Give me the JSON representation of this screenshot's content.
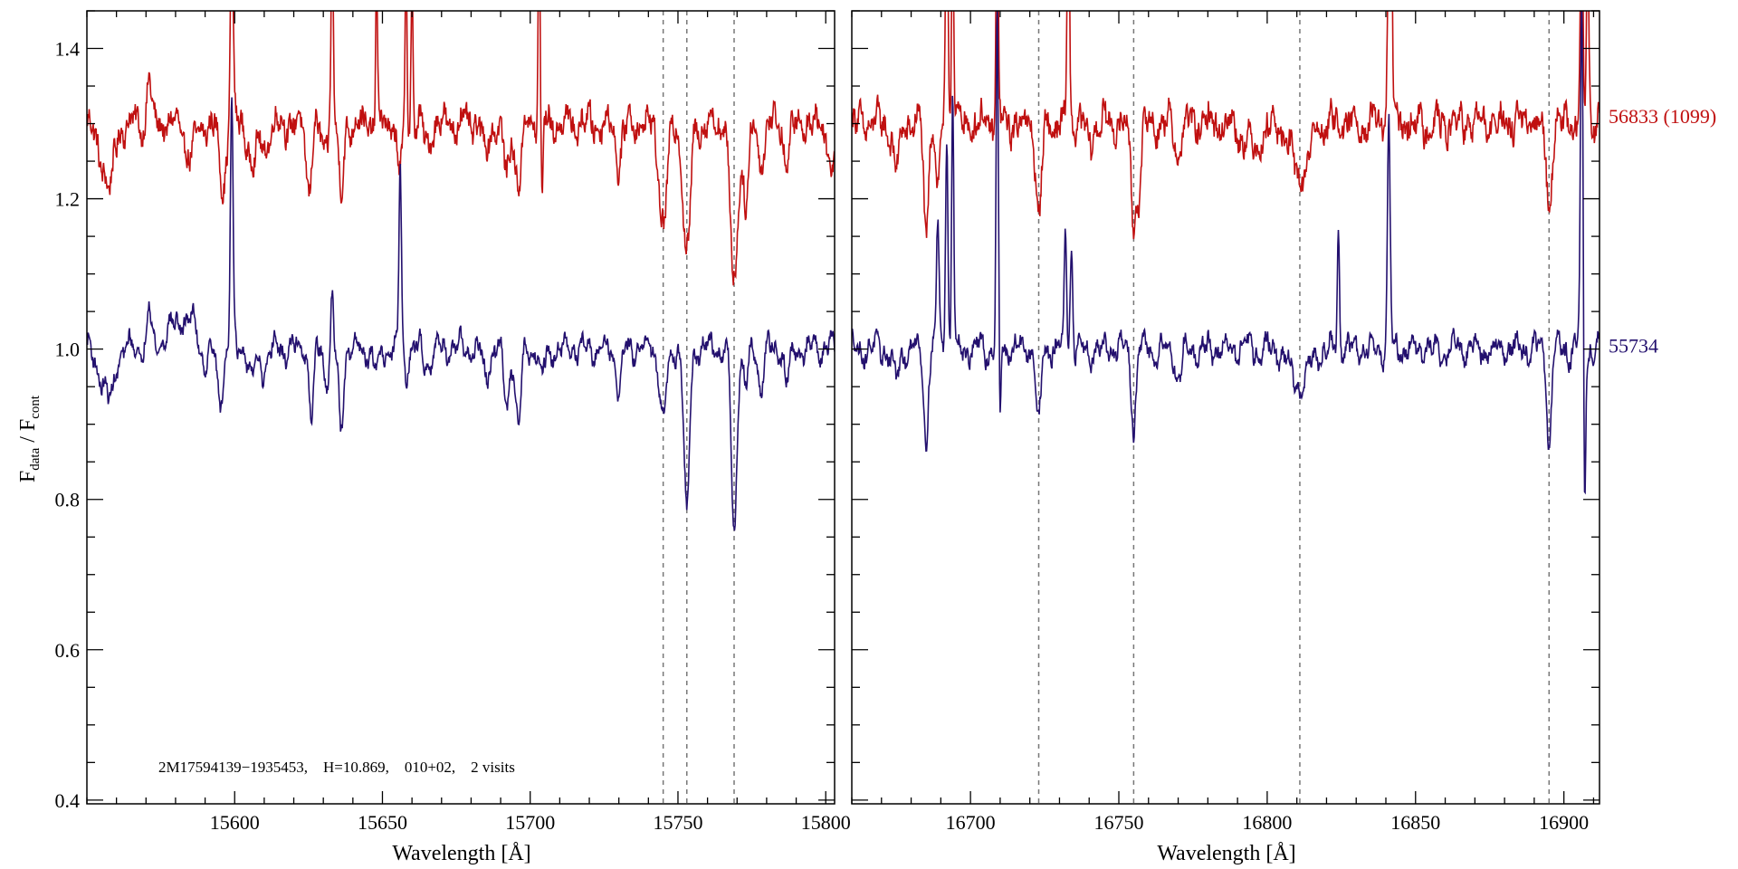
{
  "chart_data": [
    {
      "type": "line",
      "panel": "left",
      "xlabel": "Wavelength [Å]",
      "ylabel": "F_data / F_cont",
      "ylabel_main": "F",
      "ylabel_sub1": "data",
      "ylabel_sep": " / F",
      "ylabel_sub2": "cont",
      "xlim": [
        15550,
        15803
      ],
      "ylim": [
        0.395,
        1.45
      ],
      "xticks": [
        15600,
        15650,
        15700,
        15750,
        15800
      ],
      "xtick_labels": [
        "15600",
        "15650",
        "15700",
        "15750",
        "15800"
      ],
      "yticks": [
        0.4,
        0.6,
        0.8,
        1.0,
        1.2,
        1.4
      ],
      "ytick_labels": [
        "0.4",
        "0.6",
        "0.8",
        "1.0",
        "1.2",
        "1.4"
      ],
      "reference_lines_x": [
        15745,
        15753,
        15769
      ],
      "annotation": "2M17594139−1935453,    H=10.869,    010+02,    2 visits",
      "series": [
        {
          "name": "56833 (1099)",
          "color": "#c01010",
          "baseline": 1.3,
          "noise": 0.015,
          "features": [
            {
              "x": 15555,
              "d": 0.04,
              "w": 2
            },
            {
              "x": 15558,
              "d": 0.07,
              "w": 1.5
            },
            {
              "x": 15571,
              "d": -0.07,
              "w": 0.6
            },
            {
              "x": 15585,
              "d": 0.04,
              "w": 2
            },
            {
              "x": 15596,
              "d": 0.08,
              "w": 1.2
            },
            {
              "x": 15599,
              "d": -0.25,
              "w": 0.5
            },
            {
              "x": 15606,
              "d": 0.05,
              "w": 1.5
            },
            {
              "x": 15610,
              "d": 0.03,
              "w": 1.5
            },
            {
              "x": 15625,
              "d": 0.08,
              "w": 1.0
            },
            {
              "x": 15630,
              "d": 0.04,
              "w": 1.0
            },
            {
              "x": 15633,
              "d": -0.25,
              "w": 0.4
            },
            {
              "x": 15636,
              "d": 0.1,
              "w": 0.8
            },
            {
              "x": 15648,
              "d": -0.2,
              "w": 0.3
            },
            {
              "x": 15656,
              "d": 0.06,
              "w": 1.0
            },
            {
              "x": 15658,
              "d": -0.25,
              "w": 0.3
            },
            {
              "x": 15660,
              "d": -0.2,
              "w": 0.3
            },
            {
              "x": 15665,
              "d": 0.03,
              "w": 1.0
            },
            {
              "x": 15685,
              "d": 0.04,
              "w": 1.0
            },
            {
              "x": 15692,
              "d": 0.07,
              "w": 1.0
            },
            {
              "x": 15696,
              "d": 0.08,
              "w": 1.0
            },
            {
              "x": 15703,
              "d": -0.3,
              "w": 0.3
            },
            {
              "x": 15704,
              "d": 0.1,
              "w": 0.3
            },
            {
              "x": 15730,
              "d": 0.05,
              "w": 1.0
            },
            {
              "x": 15745,
              "d": 0.13,
              "w": 1.4
            },
            {
              "x": 15753,
              "d": 0.18,
              "w": 1.2
            },
            {
              "x": 15769,
              "d": 0.22,
              "w": 1.2
            },
            {
              "x": 15773,
              "d": 0.1,
              "w": 1.0
            },
            {
              "x": 15778,
              "d": 0.05,
              "w": 1.0
            },
            {
              "x": 15787,
              "d": 0.05,
              "w": 1.0
            },
            {
              "x": 15802,
              "d": 0.07,
              "w": 1.0
            }
          ]
        },
        {
          "name": "55734",
          "color": "#23106e",
          "baseline": 1.0,
          "noise": 0.009,
          "features": [
            {
              "x": 15555,
              "d": 0.03,
              "w": 2
            },
            {
              "x": 15558,
              "d": 0.06,
              "w": 1.5
            },
            {
              "x": 15571,
              "d": -0.06,
              "w": 0.6
            },
            {
              "x": 15583,
              "d": -0.04,
              "w": 5
            },
            {
              "x": 15590,
              "d": 0.03,
              "w": 1.5
            },
            {
              "x": 15595,
              "d": 0.07,
              "w": 1.0
            },
            {
              "x": 15599,
              "d": -0.33,
              "w": 0.45
            },
            {
              "x": 15606,
              "d": 0.04,
              "w": 1.2
            },
            {
              "x": 15610,
              "d": 0.03,
              "w": 1.2
            },
            {
              "x": 15626,
              "d": 0.09,
              "w": 0.8
            },
            {
              "x": 15631,
              "d": 0.04,
              "w": 0.8
            },
            {
              "x": 15633,
              "d": -0.07,
              "w": 0.4
            },
            {
              "x": 15636,
              "d": 0.11,
              "w": 0.8
            },
            {
              "x": 15648,
              "d": 0.03,
              "w": 1.0
            },
            {
              "x": 15656,
              "d": -0.24,
              "w": 0.4
            },
            {
              "x": 15658,
              "d": 0.03,
              "w": 0.5
            },
            {
              "x": 15665,
              "d": 0.02,
              "w": 1.0
            },
            {
              "x": 15685,
              "d": 0.04,
              "w": 1.0
            },
            {
              "x": 15692,
              "d": 0.08,
              "w": 0.9
            },
            {
              "x": 15696,
              "d": 0.1,
              "w": 0.9
            },
            {
              "x": 15704,
              "d": 0.04,
              "w": 0.8
            },
            {
              "x": 15730,
              "d": 0.05,
              "w": 1.0
            },
            {
              "x": 15745,
              "d": 0.1,
              "w": 1.1
            },
            {
              "x": 15753,
              "d": 0.23,
              "w": 0.9
            },
            {
              "x": 15769,
              "d": 0.25,
              "w": 0.9
            },
            {
              "x": 15773,
              "d": 0.05,
              "w": 0.8
            },
            {
              "x": 15778,
              "d": 0.05,
              "w": 0.8
            },
            {
              "x": 15787,
              "d": 0.04,
              "w": 1.0
            }
          ]
        }
      ]
    },
    {
      "type": "line",
      "panel": "right",
      "xlabel": "Wavelength [Å]",
      "xlim": [
        16660,
        16912
      ],
      "ylim": [
        0.395,
        1.45
      ],
      "xticks": [
        16700,
        16750,
        16800,
        16850,
        16900
      ],
      "xtick_labels": [
        "16700",
        "16750",
        "16800",
        "16850",
        "16900"
      ],
      "yticks": [
        0.4,
        0.6,
        0.8,
        1.0,
        1.2,
        1.4
      ],
      "reference_lines_x": [
        16723,
        16755,
        16811,
        16895
      ],
      "series": [
        {
          "name": "56833 (1099)",
          "label": "56833 (1099)",
          "label_y": 1.31,
          "color": "#c01010",
          "baseline": 1.3,
          "noise": 0.016,
          "features": [
            {
              "x": 16675,
              "d": 0.06,
              "w": 1.2
            },
            {
              "x": 16685,
              "d": 0.16,
              "w": 0.7
            },
            {
              "x": 16689,
              "d": 0.08,
              "w": 0.8
            },
            {
              "x": 16692,
              "d": -0.35,
              "w": 0.4
            },
            {
              "x": 16694,
              "d": -0.3,
              "w": 0.35
            },
            {
              "x": 16709,
              "d": -0.35,
              "w": 0.35
            },
            {
              "x": 16723,
              "d": 0.13,
              "w": 0.9
            },
            {
              "x": 16733,
              "d": -0.3,
              "w": 0.4
            },
            {
              "x": 16740,
              "d": 0.03,
              "w": 1.0
            },
            {
              "x": 16755,
              "d": 0.13,
              "w": 0.9
            },
            {
              "x": 16757,
              "d": 0.08,
              "w": 0.7
            },
            {
              "x": 16770,
              "d": 0.04,
              "w": 1.0
            },
            {
              "x": 16795,
              "d": 0.03,
              "w": 3.0
            },
            {
              "x": 16811,
              "d": 0.07,
              "w": 3.0
            },
            {
              "x": 16841,
              "d": -0.25,
              "w": 0.45
            },
            {
              "x": 16842,
              "d": -0.2,
              "w": 0.3
            },
            {
              "x": 16895,
              "d": 0.1,
              "w": 0.9
            },
            {
              "x": 16906,
              "d": -0.3,
              "w": 0.4
            },
            {
              "x": 16908,
              "d": -0.25,
              "w": 0.4
            }
          ]
        },
        {
          "name": "55734",
          "label": "55734",
          "label_y": 1.005,
          "color": "#23106e",
          "baseline": 1.0,
          "noise": 0.01,
          "features": [
            {
              "x": 16675,
              "d": 0.04,
              "w": 1.2
            },
            {
              "x": 16685,
              "d": 0.12,
              "w": 0.7
            },
            {
              "x": 16689,
              "d": -0.17,
              "w": 0.45
            },
            {
              "x": 16692,
              "d": -0.3,
              "w": 0.4
            },
            {
              "x": 16694,
              "d": -0.35,
              "w": 0.35
            },
            {
              "x": 16709,
              "d": -0.45,
              "w": 0.35
            },
            {
              "x": 16710,
              "d": 0.11,
              "w": 0.25
            },
            {
              "x": 16723,
              "d": 0.1,
              "w": 0.8
            },
            {
              "x": 16732,
              "d": -0.15,
              "w": 0.4
            },
            {
              "x": 16734,
              "d": -0.13,
              "w": 0.4
            },
            {
              "x": 16755,
              "d": 0.1,
              "w": 0.8
            },
            {
              "x": 16770,
              "d": 0.04,
              "w": 1.0
            },
            {
              "x": 16811,
              "d": 0.05,
              "w": 3.0
            },
            {
              "x": 16824,
              "d": -0.15,
              "w": 0.4
            },
            {
              "x": 16841,
              "d": -0.3,
              "w": 0.45
            },
            {
              "x": 16895,
              "d": 0.12,
              "w": 0.8
            },
            {
              "x": 16906,
              "d": -0.45,
              "w": 0.45
            },
            {
              "x": 16907,
              "d": 0.23,
              "w": 0.3
            }
          ]
        }
      ]
    }
  ]
}
